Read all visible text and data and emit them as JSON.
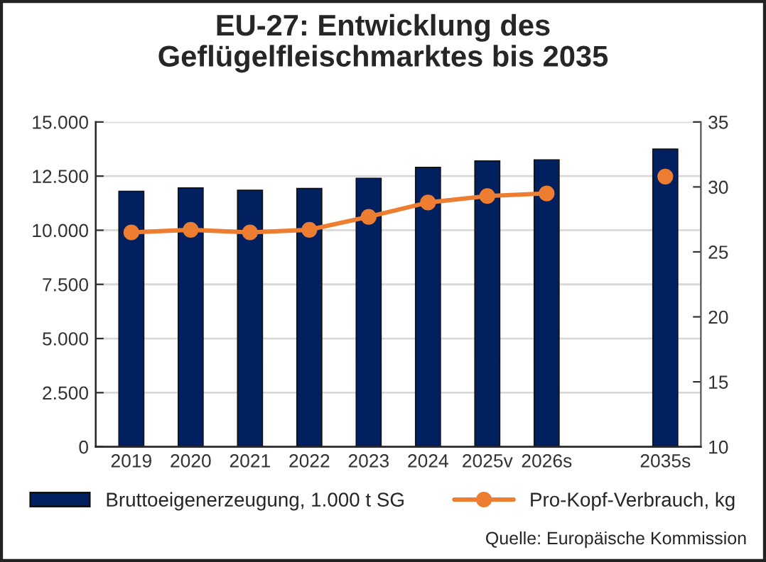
{
  "chart_data": {
    "type": "bar",
    "title": "EU-27: Entwicklung des\nGeflügelfleischmarktes bis 2035",
    "categories": [
      "2019",
      "2020",
      "2021",
      "2022",
      "2023",
      "2024",
      "2025v",
      "2026s",
      null,
      "2035s"
    ],
    "series": [
      {
        "name": "Bruttoeigenerzeugung, 1.000 t SG",
        "color": "#002060",
        "values": [
          11800,
          11950,
          11850,
          11930,
          12400,
          12900,
          13200,
          13250,
          null,
          13750
        ]
      },
      {
        "name": "Pro-Kopf-Verbrauch, kg",
        "type": "line",
        "axis": "y2",
        "color": "#ed7d31",
        "marker": "circle",
        "values": [
          26.5,
          26.7,
          26.5,
          26.7,
          27.7,
          28.8,
          29.3,
          29.5,
          null,
          30.8
        ]
      }
    ],
    "ylim": [
      0,
      15000
    ],
    "yticks": [
      {
        "value": 0,
        "label": "0"
      },
      {
        "value": 2500,
        "label": "2.500"
      },
      {
        "value": 5000,
        "label": "5.000"
      },
      {
        "value": 7500,
        "label": "7.500"
      },
      {
        "value": 10000,
        "label": "10.000"
      },
      {
        "value": 12500,
        "label": "12.500"
      },
      {
        "value": 15000,
        "label": "15.000"
      }
    ],
    "y2lim": [
      10,
      35
    ],
    "y2ticks": [
      10,
      15,
      20,
      25,
      30,
      35
    ],
    "grid": "y",
    "legend": "bottom",
    "annotations": [
      "Quelle: Europäische Kommission"
    ]
  }
}
